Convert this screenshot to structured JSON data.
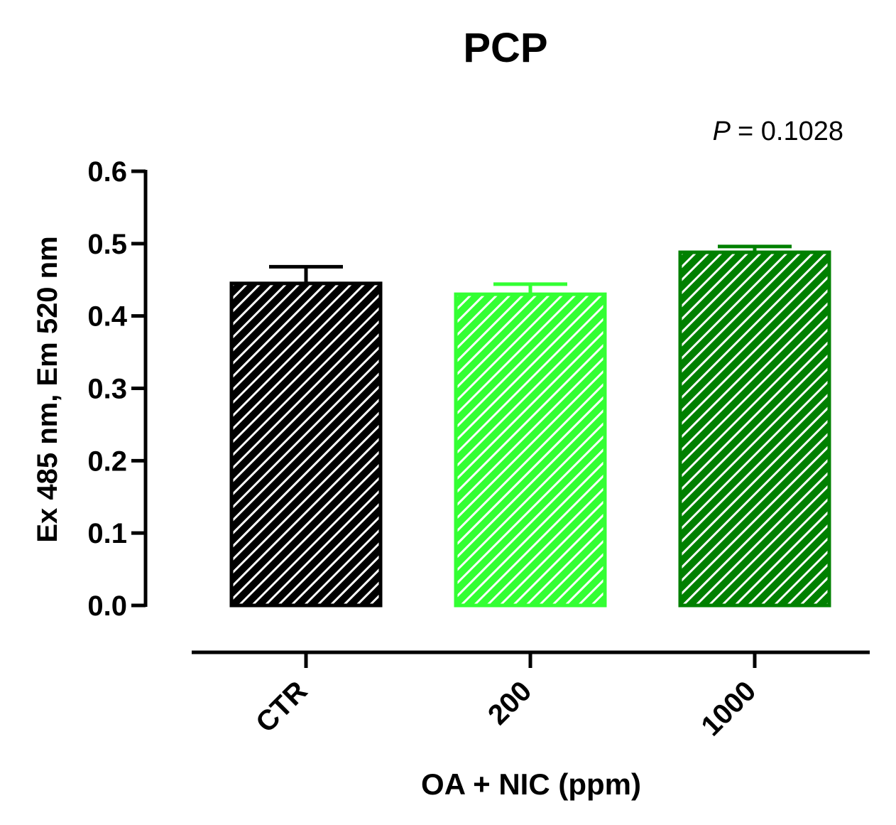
{
  "chart_data": {
    "type": "bar",
    "title": "PCP",
    "xlabel": "OA + NIC (ppm)",
    "ylabel": "Ex 485 nm, Em 520 nm",
    "ylim": [
      0,
      0.6
    ],
    "yticks": [
      "0.0",
      "0.1",
      "0.2",
      "0.3",
      "0.4",
      "0.5",
      "0.6"
    ],
    "categories": [
      "CTR",
      "200",
      "1000"
    ],
    "values": [
      0.445,
      0.43,
      0.488
    ],
    "errors": [
      0.023,
      0.014,
      0.008
    ],
    "colors": [
      "#000000",
      "#33FF33",
      "#008000"
    ],
    "fill_pattern": "diagonal-hatch",
    "annotation": {
      "label": "P",
      "value": "= 0.1028"
    }
  }
}
